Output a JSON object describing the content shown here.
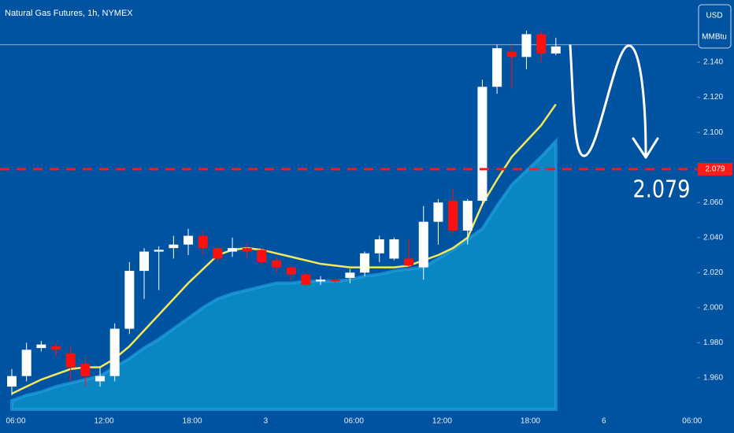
{
  "chart_data": {
    "type": "candlestick",
    "title": "Natural Gas Futures, 1h, NYMEX",
    "currency": "USD",
    "unit": "MMBtu",
    "categories": [
      "06:00",
      null,
      null,
      null,
      null,
      null,
      "12:00",
      null,
      null,
      null,
      null,
      null,
      "18:00",
      null,
      null,
      null,
      null,
      "3",
      null,
      null,
      null,
      null,
      null,
      "06:00",
      null,
      null,
      null,
      null,
      null,
      "12:00",
      null,
      null,
      null,
      null,
      null,
      "18:00",
      null,
      null,
      null,
      null,
      "6",
      null,
      null,
      null,
      null,
      null,
      "06:00"
    ],
    "open": [
      1.955,
      1.961,
      1.977,
      1.978,
      1.974,
      1.968,
      1.958,
      1.961,
      1.988,
      2.021,
      2.032,
      2.034,
      2.036,
      2.041,
      2.034,
      2.032,
      2.034,
      2.033,
      2.027,
      2.023,
      2.019,
      2.015,
      2.016,
      2.017,
      2.02,
      2.031,
      2.028,
      2.028,
      2.023,
      2.049,
      2.061,
      2.044,
      2.061,
      2.126,
      2.146,
      2.143,
      2.156,
      2.145,
      null,
      null,
      null,
      null,
      null,
      null,
      null,
      null,
      null
    ],
    "high": [
      1.965,
      1.98,
      1.981,
      1.98,
      1.978,
      1.972,
      1.966,
      1.991,
      2.026,
      2.034,
      2.035,
      2.041,
      2.045,
      2.044,
      2.035,
      2.04,
      2.037,
      2.034,
      2.029,
      2.024,
      2.02,
      2.018,
      2.017,
      2.022,
      2.032,
      2.041,
      2.04,
      2.039,
      2.058,
      2.062,
      2.068,
      2.062,
      2.13,
      2.15,
      2.15,
      2.158,
      2.158,
      2.154,
      null,
      null,
      null,
      null,
      null,
      null,
      null,
      null,
      null
    ],
    "low": [
      1.95,
      1.958,
      1.975,
      1.972,
      1.958,
      1.955,
      1.955,
      1.958,
      1.985,
      2.005,
      2.01,
      2.028,
      2.03,
      2.03,
      2.026,
      2.029,
      2.028,
      2.024,
      2.02,
      2.016,
      2.012,
      2.013,
      2.014,
      2.014,
      2.018,
      2.026,
      2.027,
      2.022,
      2.016,
      2.036,
      2.042,
      2.036,
      2.058,
      2.122,
      2.125,
      2.136,
      2.14,
      2.144,
      null,
      null,
      null,
      null,
      null,
      null,
      null,
      null,
      null
    ],
    "close": [
      1.961,
      1.976,
      1.979,
      1.976,
      1.966,
      1.961,
      1.961,
      1.988,
      2.021,
      2.032,
      2.033,
      2.036,
      2.041,
      2.034,
      2.028,
      2.034,
      2.032,
      2.026,
      2.023,
      2.019,
      2.013,
      2.016,
      2.015,
      2.02,
      2.031,
      2.039,
      2.039,
      2.024,
      2.049,
      2.06,
      2.044,
      2.061,
      2.126,
      2.148,
      2.143,
      2.156,
      2.145,
      2.149,
      null,
      null,
      null,
      null,
      null,
      null,
      null,
      null,
      null
    ],
    "up_color": "#ffffff",
    "down_color": "#ff1010",
    "overlays": [
      {
        "type": "area",
        "color": "#0a86c2",
        "values": [
          1.947,
          1.95,
          1.952,
          1.955,
          1.957,
          1.959,
          1.961,
          1.966,
          1.971,
          1.977,
          1.982,
          1.988,
          1.994,
          2.0,
          2.005,
          2.008,
          2.01,
          2.012,
          2.014,
          2.014,
          2.015,
          2.015,
          2.015,
          2.016,
          2.018,
          2.019,
          2.021,
          2.022,
          2.023,
          2.028,
          2.033,
          2.039,
          2.045,
          2.058,
          2.07,
          2.078,
          2.086,
          2.095,
          null,
          null,
          null,
          null,
          null,
          null,
          null,
          null,
          null
        ]
      },
      {
        "type": "line",
        "color": "#f5e85a",
        "values": [
          1.951,
          1.955,
          1.959,
          1.962,
          1.965,
          1.966,
          1.966,
          1.971,
          1.978,
          1.987,
          1.996,
          2.005,
          2.014,
          2.022,
          2.03,
          2.033,
          2.034,
          2.033,
          2.031,
          2.029,
          2.027,
          2.025,
          2.024,
          2.023,
          2.023,
          2.023,
          2.023,
          2.024,
          2.027,
          2.03,
          2.034,
          2.04,
          2.059,
          2.073,
          2.086,
          2.095,
          2.104,
          2.116,
          null,
          null,
          null,
          null,
          null,
          null,
          null,
          null,
          null
        ]
      }
    ],
    "ylim": [
      1.942,
      2.1755
    ],
    "yticks": [
      {
        "value": 1.96,
        "label": "1.960"
      },
      {
        "value": 1.98,
        "label": "1.980"
      },
      {
        "value": 2.0,
        "label": "2.000"
      },
      {
        "value": 2.02,
        "label": "2.020"
      },
      {
        "value": 2.04,
        "label": "2.040"
      },
      {
        "value": 2.06,
        "label": "2.060"
      },
      {
        "value": 2.1,
        "label": "2.100"
      },
      {
        "value": 2.12,
        "label": "2.120"
      },
      {
        "value": 2.14,
        "label": "2.140"
      }
    ],
    "reference_line": {
      "value": 2.15,
      "color": "#8fb3d6"
    },
    "price_line": {
      "value": 2.079,
      "color": "#ff1a1a"
    }
  }
}
